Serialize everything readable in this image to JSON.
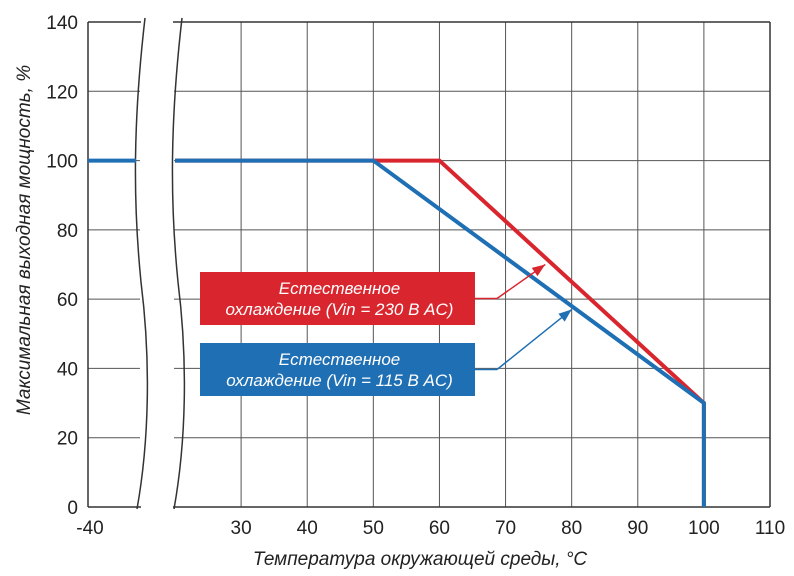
{
  "chart_data": {
    "type": "line",
    "title": "",
    "xlabel": "Температура окружающей среды, °C",
    "ylabel": "Максимальная выходная мощность, %",
    "xlim": [
      20,
      110
    ],
    "ylim": [
      0,
      140
    ],
    "x_break": {
      "label": "-40"
    },
    "x_ticks": [
      "30",
      "40",
      "50",
      "60",
      "70",
      "80",
      "90",
      "100",
      "110"
    ],
    "y_ticks": [
      "0",
      "20",
      "40",
      "60",
      "80",
      "100",
      "120",
      "140"
    ],
    "grid": true,
    "series": [
      {
        "name": "Естественное охлаждение (Vin = 230 В AC)",
        "color": "#d9262e",
        "points": [
          [
            20,
            100
          ],
          [
            60,
            100
          ],
          [
            100,
            30
          ],
          [
            100,
            0
          ]
        ]
      },
      {
        "name": "Естественное охлаждение (Vin = 115 В AC)",
        "color": "#1f6fb4",
        "points": [
          [
            20,
            100
          ],
          [
            50,
            100
          ],
          [
            100,
            30
          ],
          [
            100,
            0
          ]
        ]
      }
    ],
    "break_segment_value": 100,
    "annotations": [
      {
        "line1": "Естественное",
        "line2": "охлаждение (Vin = 230 В AC)",
        "color": "#d9262e",
        "target": [
          76,
          70
        ]
      },
      {
        "line1": "Естественное",
        "line2": "охлаждение (Vin = 115 В AC)",
        "color": "#1f6fb4",
        "target": [
          80,
          57
        ]
      }
    ]
  }
}
